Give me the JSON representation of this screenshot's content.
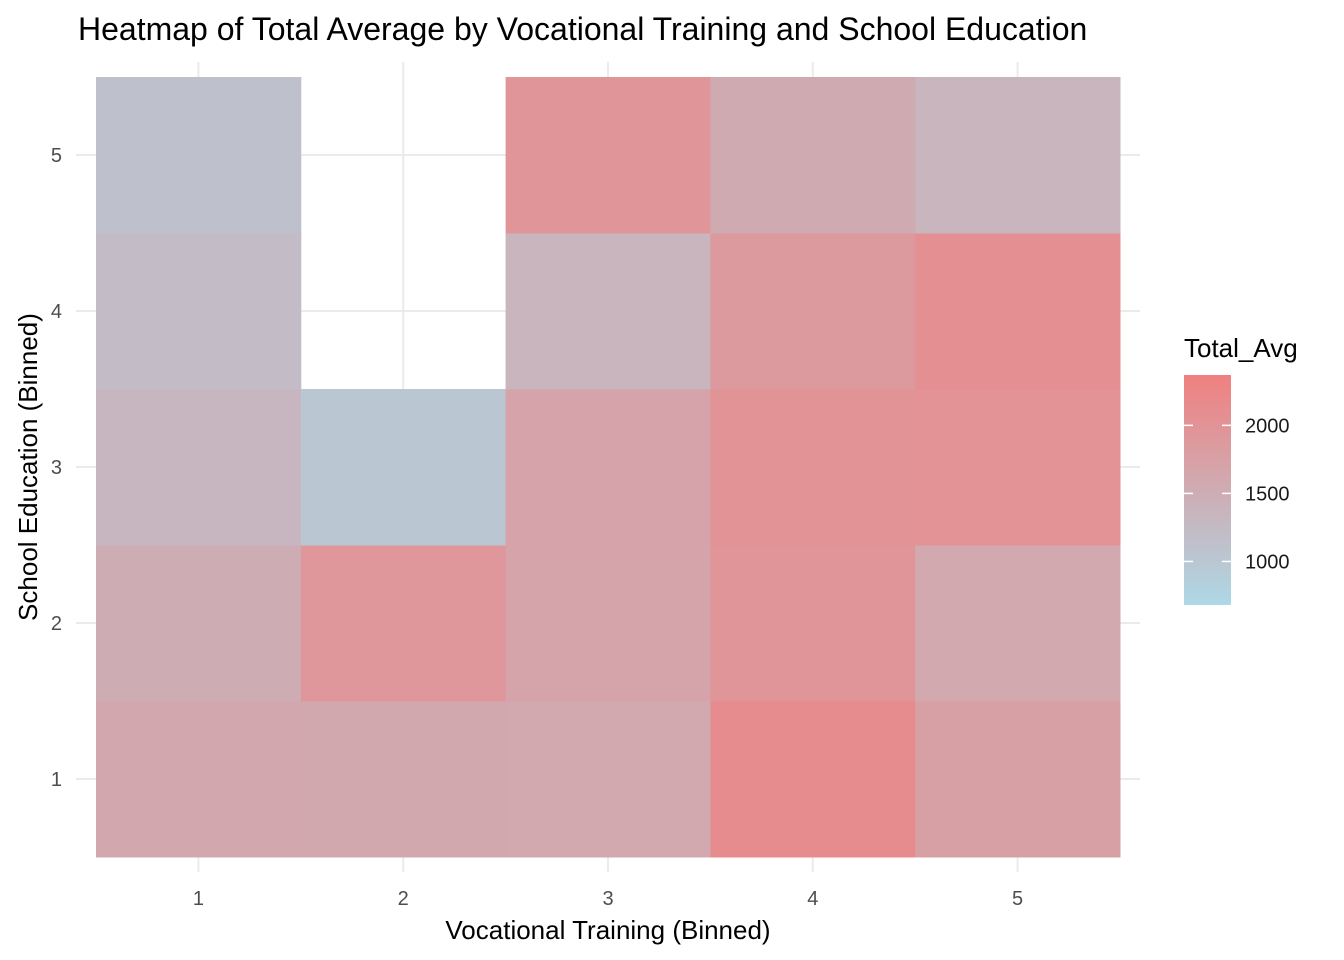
{
  "chart_data": {
    "type": "heatmap",
    "title": "Heatmap of Total Average by Vocational Training and School Education",
    "xlabel": "Vocational Training (Binned)",
    "ylabel": "School Education (Binned)",
    "x_categories": [
      "1",
      "2",
      "3",
      "4",
      "5"
    ],
    "y_categories": [
      "1",
      "2",
      "3",
      "4",
      "5"
    ],
    "cells": [
      {
        "x": "1",
        "y": "1",
        "value": 1620
      },
      {
        "x": "2",
        "y": "1",
        "value": 1600
      },
      {
        "x": "3",
        "y": "1",
        "value": 1590
      },
      {
        "x": "4",
        "y": "1",
        "value": 2130
      },
      {
        "x": "5",
        "y": "1",
        "value": 1750
      },
      {
        "x": "1",
        "y": "2",
        "value": 1520
      },
      {
        "x": "2",
        "y": "2",
        "value": 1930
      },
      {
        "x": "3",
        "y": "2",
        "value": 1670
      },
      {
        "x": "4",
        "y": "2",
        "value": 1960
      },
      {
        "x": "5",
        "y": "2",
        "value": 1590
      },
      {
        "x": "1",
        "y": "3",
        "value": 1330
      },
      {
        "x": "2",
        "y": "3",
        "value": 1000
      },
      {
        "x": "3",
        "y": "3",
        "value": 1690
      },
      {
        "x": "4",
        "y": "3",
        "value": 2000
      },
      {
        "x": "5",
        "y": "3",
        "value": 2030
      },
      {
        "x": "1",
        "y": "4",
        "value": 1230
      },
      {
        "x": "3",
        "y": "4",
        "value": 1350
      },
      {
        "x": "4",
        "y": "4",
        "value": 1880
      },
      {
        "x": "5",
        "y": "4",
        "value": 2070
      },
      {
        "x": "1",
        "y": "5",
        "value": 1120
      },
      {
        "x": "3",
        "y": "5",
        "value": 1970
      },
      {
        "x": "4",
        "y": "5",
        "value": 1560
      },
      {
        "x": "5",
        "y": "5",
        "value": 1360
      }
    ],
    "legend": {
      "title": "Total_Avg",
      "min": 680,
      "max": 2370,
      "breaks": [
        1000,
        1500,
        2000
      ],
      "low_color": "#add8e6",
      "high_color": "#f08080"
    },
    "grid": true,
    "legend_position": "right"
  }
}
